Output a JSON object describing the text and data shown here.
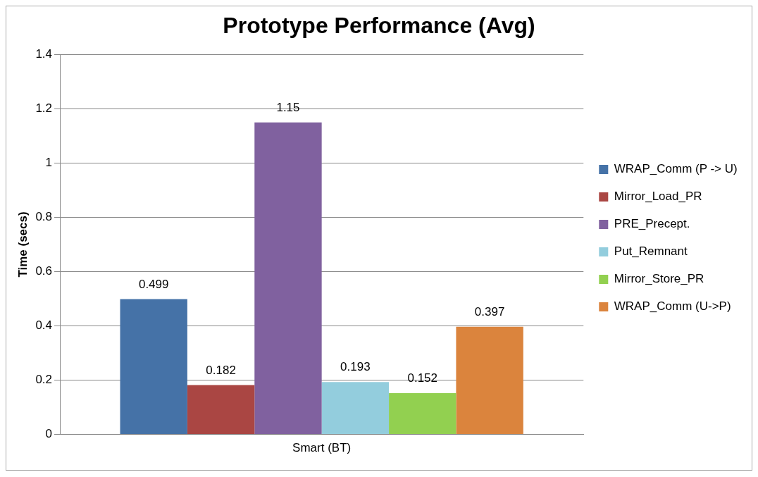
{
  "chart_data": {
    "type": "bar",
    "title": "Prototype Performance (Avg)",
    "ylabel": "Time (secs)",
    "categories": [
      "Smart (BT)"
    ],
    "series": [
      {
        "name": "WRAP_Comm (P -> U)",
        "color": "#4572a7",
        "values": [
          0.499
        ]
      },
      {
        "name": "Mirror_Load_PR",
        "color": "#aa4643",
        "values": [
          0.182
        ]
      },
      {
        "name": "PRE_Precept.",
        "color": "#80619f",
        "values": [
          1.15
        ]
      },
      {
        "name": "Put_Remnant",
        "color": "#93cddd",
        "values": [
          0.193
        ]
      },
      {
        "name": "Mirror_Store_PR",
        "color": "#92d050",
        "values": [
          0.152
        ]
      },
      {
        "name": "WRAP_Comm (U->P)",
        "color": "#db843d",
        "values": [
          0.397
        ]
      }
    ],
    "ylim": [
      0,
      1.4
    ],
    "yticks": [
      0,
      0.2,
      0.4,
      0.6,
      0.8,
      1,
      1.2,
      1.4
    ],
    "grid": "y",
    "legend": "right",
    "data_labels": true
  }
}
